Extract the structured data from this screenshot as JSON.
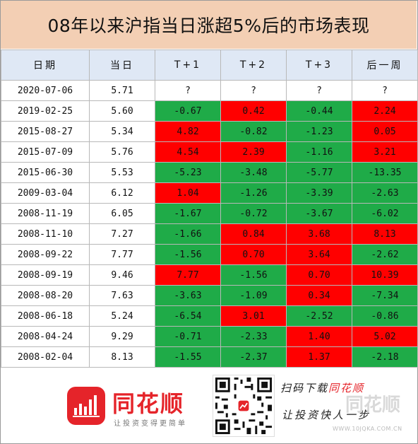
{
  "title": "08年以来沪指当日涨超5%后的市场表现",
  "table": {
    "headers": [
      "日期",
      "当日",
      "T+1",
      "T+2",
      "T+3",
      "后一周"
    ],
    "rows": [
      {
        "date": "2020-07-06",
        "day": "5.71",
        "t1": "?",
        "t2": "?",
        "t3": "?",
        "week": "?"
      },
      {
        "date": "2019-02-25",
        "day": "5.60",
        "t1": "-0.67",
        "t2": "0.42",
        "t3": "-0.44",
        "week": "2.24"
      },
      {
        "date": "2015-08-27",
        "day": "5.34",
        "t1": "4.82",
        "t2": "-0.82",
        "t3": "-1.23",
        "week": "0.05"
      },
      {
        "date": "2015-07-09",
        "day": "5.76",
        "t1": "4.54",
        "t2": "2.39",
        "t3": "-1.16",
        "week": "3.21"
      },
      {
        "date": "2015-06-30",
        "day": "5.53",
        "t1": "-5.23",
        "t2": "-3.48",
        "t3": "-5.77",
        "week": "-13.35"
      },
      {
        "date": "2009-03-04",
        "day": "6.12",
        "t1": "1.04",
        "t2": "-1.26",
        "t3": "-3.39",
        "week": "-2.63"
      },
      {
        "date": "2008-11-19",
        "day": "6.05",
        "t1": "-1.67",
        "t2": "-0.72",
        "t3": "-3.67",
        "week": "-6.02"
      },
      {
        "date": "2008-11-10",
        "day": "7.27",
        "t1": "-1.66",
        "t2": "0.84",
        "t3": "3.68",
        "week": "8.13"
      },
      {
        "date": "2008-09-22",
        "day": "7.77",
        "t1": "-1.56",
        "t2": "0.70",
        "t3": "3.64",
        "week": "-2.62"
      },
      {
        "date": "2008-09-19",
        "day": "9.46",
        "t1": "7.77",
        "t2": "-1.56",
        "t3": "0.70",
        "week": "10.39"
      },
      {
        "date": "2008-08-20",
        "day": "7.63",
        "t1": "-3.63",
        "t2": "-1.09",
        "t3": "0.34",
        "week": "-7.34"
      },
      {
        "date": "2008-06-18",
        "day": "5.24",
        "t1": "-6.54",
        "t2": "3.01",
        "t3": "-2.52",
        "week": "-0.86"
      },
      {
        "date": "2008-04-24",
        "day": "9.29",
        "t1": "-0.71",
        "t2": "-2.33",
        "t3": "1.40",
        "week": "5.02"
      },
      {
        "date": "2008-02-04",
        "day": "8.13",
        "t1": "-1.55",
        "t2": "-2.37",
        "t3": "1.37",
        "week": "-2.18"
      }
    ]
  },
  "footer": {
    "brand": "同花顺",
    "slogan": "让投资变得更简单",
    "scan_prefix": "扫码下载",
    "scan_brand": "同花顺",
    "invest": "让投资快人一步",
    "watermark_brand": "同花顺",
    "watermark_url": "WWW.10JQKA.COM.CN"
  },
  "colors": {
    "up": "#ff0000",
    "down": "#1fab48",
    "header": "#dfe8f5",
    "title": "#f3cfb4",
    "brand": "#e5242a"
  },
  "icons": [
    "tonghuashun-logo-icon",
    "qr-code-icon"
  ]
}
